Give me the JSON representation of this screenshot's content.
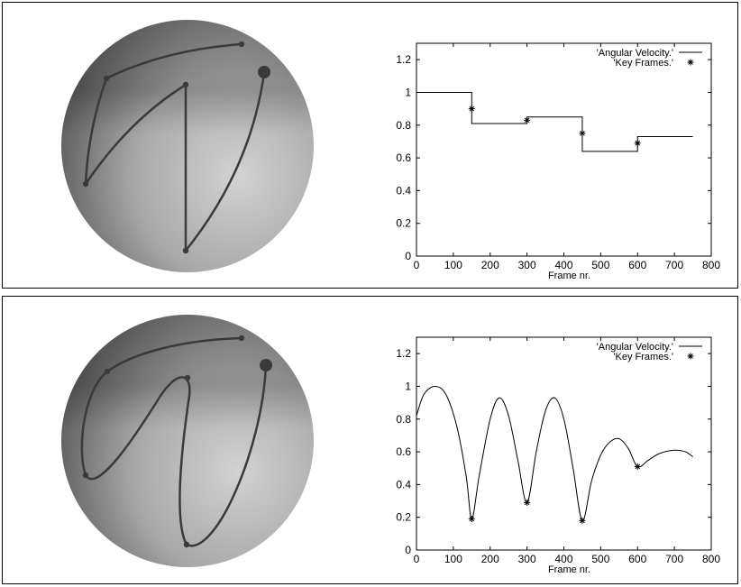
{
  "chart_data": [
    {
      "type": "line",
      "title": "",
      "xlabel": "Frame nr.",
      "ylabel": "",
      "xlim": [
        0,
        800
      ],
      "ylim": [
        0,
        1.3
      ],
      "x_ticks": [
        "0",
        "100",
        "200",
        "300",
        "400",
        "500",
        "600",
        "700",
        "800"
      ],
      "y_ticks": [
        "0",
        "0.2",
        "0.4",
        "0.6",
        "0.8",
        "1",
        "1.2"
      ],
      "legend_position": "top-right",
      "series": [
        {
          "name": "'Angular Velocity.'",
          "style": "step",
          "points": [
            [
              0,
              1.0
            ],
            [
              150,
              1.0
            ],
            [
              150,
              0.81
            ],
            [
              300,
              0.81
            ],
            [
              300,
              0.85
            ],
            [
              450,
              0.85
            ],
            [
              450,
              0.64
            ],
            [
              600,
              0.64
            ],
            [
              600,
              0.73
            ],
            [
              750,
              0.73
            ]
          ]
        },
        {
          "name": "'Key Frames.'",
          "style": "markers",
          "points": [
            [
              150,
              0.9
            ],
            [
              300,
              0.83
            ],
            [
              450,
              0.75
            ],
            [
              600,
              0.69
            ]
          ]
        }
      ]
    },
    {
      "type": "line",
      "title": "",
      "xlabel": "Frame nr.",
      "ylabel": "",
      "xlim": [
        0,
        800
      ],
      "ylim": [
        0,
        1.3
      ],
      "x_ticks": [
        "0",
        "100",
        "200",
        "300",
        "400",
        "500",
        "600",
        "700",
        "800"
      ],
      "y_ticks": [
        "0",
        "0.2",
        "0.4",
        "0.6",
        "0.8",
        "1",
        "1.2"
      ],
      "legend_position": "top-right",
      "series": [
        {
          "name": "'Angular Velocity.'",
          "style": "smooth",
          "points": [
            [
              0,
              0.82
            ],
            [
              20,
              0.95
            ],
            [
              50,
              1.0
            ],
            [
              80,
              0.95
            ],
            [
              110,
              0.75
            ],
            [
              135,
              0.45
            ],
            [
              150,
              0.19
            ],
            [
              170,
              0.45
            ],
            [
              200,
              0.8
            ],
            [
              225,
              0.93
            ],
            [
              250,
              0.82
            ],
            [
              275,
              0.55
            ],
            [
              300,
              0.29
            ],
            [
              325,
              0.6
            ],
            [
              350,
              0.85
            ],
            [
              375,
              0.93
            ],
            [
              400,
              0.8
            ],
            [
              425,
              0.5
            ],
            [
              450,
              0.18
            ],
            [
              475,
              0.42
            ],
            [
              500,
              0.58
            ],
            [
              525,
              0.66
            ],
            [
              550,
              0.68
            ],
            [
              575,
              0.62
            ],
            [
              600,
              0.51
            ],
            [
              630,
              0.55
            ],
            [
              660,
              0.59
            ],
            [
              700,
              0.61
            ],
            [
              730,
              0.6
            ],
            [
              750,
              0.57
            ]
          ]
        },
        {
          "name": "'Key Frames.'",
          "style": "markers",
          "points": [
            [
              150,
              0.19
            ],
            [
              300,
              0.29
            ],
            [
              450,
              0.18
            ],
            [
              600,
              0.51
            ]
          ]
        }
      ]
    }
  ],
  "colors": {
    "line": "#000000",
    "sphere_light": "#d8d8d8",
    "sphere_dark": "#6e6e6e",
    "path": "#3a3a3a"
  }
}
